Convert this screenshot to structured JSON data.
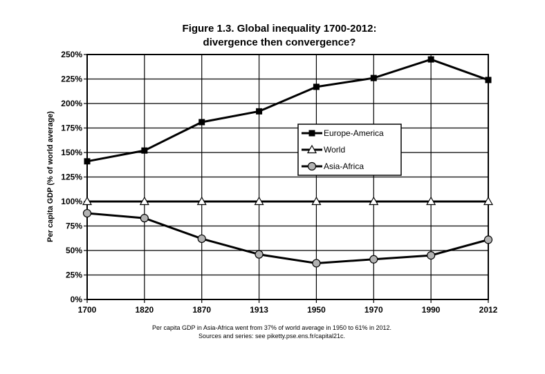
{
  "chart_data": {
    "type": "line",
    "title": "Figure 1.3. Global inequality 1700-2012:",
    "subtitle": "divergence then convergence?",
    "xlabel": "",
    "ylabel": "Per capita GDP (% of world average)",
    "categories": [
      "1700",
      "1820",
      "1870",
      "1913",
      "1950",
      "1970",
      "1990",
      "2012"
    ],
    "yticks": [
      "0%",
      "25%",
      "50%",
      "75%",
      "100%",
      "125%",
      "150%",
      "175%",
      "200%",
      "225%",
      "250%"
    ],
    "ylim": [
      0,
      250
    ],
    "grid": "vertical-and-horizontal",
    "legend_position": "center-right",
    "series": [
      {
        "name": "Europe-America",
        "marker": "square",
        "values": [
          141,
          152,
          181,
          192,
          217,
          226,
          245,
          224
        ]
      },
      {
        "name": "World",
        "marker": "triangle",
        "values": [
          100,
          100,
          100,
          100,
          100,
          100,
          100,
          100
        ]
      },
      {
        "name": "Asia-Africa",
        "marker": "circle",
        "values": [
          88,
          83,
          62,
          46,
          37,
          41,
          45,
          61
        ]
      }
    ],
    "notes": [
      "Per capita GDP in Asia-Africa went from 37% of world average in 1950 to 61% in 2012.",
      "Sources and series: see piketty.pse.ens.fr/capital21c."
    ]
  }
}
